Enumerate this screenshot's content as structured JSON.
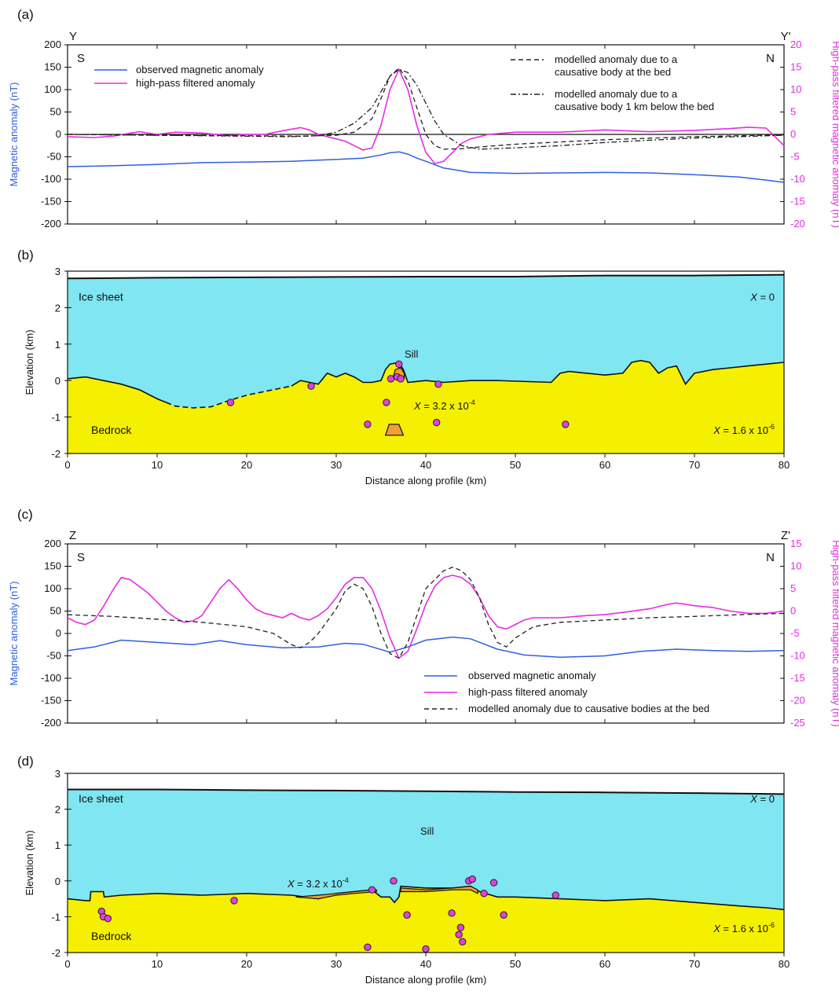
{
  "colors": {
    "observed": "#2f5fe0",
    "filtered": "#e62be6",
    "modelled": "#222222",
    "ice": "#7fe6f2",
    "bedrock": "#f5f000",
    "sill": "#f0a030",
    "marker": "#e040e0",
    "left_axis_label": "#2f5fe0",
    "right_axis_label": "#e62be6"
  },
  "chart_data": [
    {
      "panel": "(a)",
      "type": "line",
      "profile_start": "Y",
      "profile_end": "Y'",
      "south_label": "S",
      "north_label": "N",
      "xlim": [
        0,
        80
      ],
      "ylabel_left": "Magnetic anomaly (nT)",
      "ylabel_right": "High-pass filtered magnetic anomaly (nT)",
      "ylim_left": [
        -200,
        200
      ],
      "ylim_right": [
        -20,
        20
      ],
      "yticks_left": [
        200,
        150,
        100,
        50,
        0,
        -50,
        -100,
        -150,
        -200
      ],
      "yticks_right": [
        20,
        15,
        10,
        5,
        0,
        -5,
        -10,
        -15,
        -20
      ],
      "zero_line": true,
      "series": [
        {
          "key": "observed",
          "name": "observed magnetic anomaly",
          "axis": "left",
          "style": "solid",
          "x": [
            0,
            5,
            10,
            15,
            20,
            25,
            30,
            33,
            35,
            36,
            37,
            38,
            39,
            40,
            42,
            45,
            50,
            55,
            60,
            65,
            70,
            75,
            78,
            80
          ],
          "y": [
            -72,
            -70,
            -67,
            -63,
            -62,
            -60,
            -56,
            -53,
            -46,
            -41,
            -39,
            -44,
            -53,
            -60,
            -75,
            -85,
            -87,
            -86,
            -85,
            -86,
            -90,
            -95,
            -102,
            -107
          ]
        },
        {
          "key": "filtered",
          "name": "high-pass filtered anomaly",
          "axis": "right",
          "style": "solid",
          "x": [
            0,
            3,
            5,
            8,
            10,
            12,
            15,
            18,
            20,
            22,
            24,
            26,
            27,
            28,
            30,
            31,
            32,
            33,
            34,
            35,
            36,
            37,
            38,
            39,
            40,
            41,
            42,
            43,
            44,
            45,
            47,
            50,
            55,
            60,
            65,
            70,
            72,
            74,
            76,
            78,
            79,
            80
          ],
          "y": [
            -0.5,
            -0.7,
            -0.4,
            0.6,
            0,
            0.5,
            0.3,
            -0.3,
            0,
            0,
            0.8,
            1.5,
            1,
            0,
            -1,
            -1.5,
            -2.5,
            -3.5,
            -3,
            2,
            10,
            14.5,
            10,
            2,
            -4,
            -6.5,
            -6,
            -4,
            -2,
            -1,
            0,
            0.5,
            0.5,
            1,
            0.6,
            0.9,
            1.1,
            1.3,
            1.6,
            1.4,
            -0.5,
            -2.5
          ]
        },
        {
          "key": "modelled_bed",
          "name": "modelled anomaly due to a causative body at the bed",
          "axis": "left",
          "style": "dashed",
          "x": [
            0,
            10,
            20,
            26,
            30,
            32,
            34,
            35,
            36,
            37,
            38,
            39,
            40,
            41,
            42,
            44,
            46,
            50,
            60,
            70,
            80
          ],
          "y": [
            0,
            -2,
            -3,
            -4,
            -2,
            5,
            35,
            80,
            130,
            148,
            120,
            60,
            0,
            -25,
            -33,
            -32,
            -28,
            -22,
            -12,
            -5,
            -1
          ]
        },
        {
          "key": "modelled_deep",
          "name": "modelled anomaly due to a causative body 1 km below the bed",
          "axis": "left",
          "style": "dashdot",
          "x": [
            0,
            10,
            20,
            25,
            28,
            30,
            32,
            34,
            35,
            36,
            37,
            38,
            39,
            40,
            41,
            42,
            44,
            46,
            50,
            55,
            60,
            70,
            80
          ],
          "y": [
            0,
            -2,
            -4,
            -5,
            -3,
            5,
            25,
            60,
            95,
            130,
            145,
            138,
            110,
            70,
            30,
            0,
            -25,
            -33,
            -30,
            -25,
            -18,
            -8,
            -2
          ]
        }
      ]
    },
    {
      "panel": "(b)",
      "type": "area",
      "xlabel": "Distance along profile (km)",
      "ylabel": "Elevation (km)",
      "xlim": [
        0,
        80
      ],
      "ylim": [
        -2,
        3
      ],
      "xticks": [
        0,
        10,
        20,
        30,
        40,
        50,
        60,
        70,
        80
      ],
      "yticks": [
        3,
        2,
        1,
        0,
        -1,
        -2
      ],
      "ice_label": "Ice sheet",
      "bedrock_label": "Bedrock",
      "sill_label": "Sill",
      "ice_susceptibility": "X = 0",
      "bedrock_susceptibility": "X = 1.6 x 10⁻⁶",
      "body_susceptibility": "X = 3.2 x 10⁻⁴",
      "surface": {
        "x": [
          0,
          10,
          20,
          30,
          40,
          50,
          60,
          70,
          80
        ],
        "y": [
          2.8,
          2.82,
          2.83,
          2.84,
          2.85,
          2.85,
          2.88,
          2.88,
          2.9
        ]
      },
      "bed_solid_1": {
        "x": [
          0,
          2,
          4,
          6,
          8,
          10,
          11
        ],
        "y": [
          0.05,
          0.1,
          0.0,
          -0.1,
          -0.25,
          -0.5,
          -0.6
        ]
      },
      "bed_dashed": {
        "x": [
          11,
          12,
          14,
          16,
          18,
          20,
          22,
          24,
          25
        ],
        "y": [
          -0.6,
          -0.7,
          -0.75,
          -0.72,
          -0.55,
          -0.4,
          -0.3,
          -0.2,
          -0.15
        ]
      },
      "bed_solid_2": {
        "x": [
          25,
          26,
          28,
          29,
          30,
          31,
          32,
          33,
          34,
          35,
          35.5,
          36,
          37,
          37.5,
          38,
          40,
          42,
          45,
          48,
          54,
          55,
          56,
          58,
          60,
          62,
          63,
          64,
          65,
          66,
          67,
          68,
          69,
          70,
          72,
          74,
          76,
          78,
          80
        ],
        "y": [
          -0.15,
          0,
          -0.1,
          0.2,
          0.1,
          0.2,
          0.1,
          -0.05,
          -0.05,
          0.0,
          0.3,
          0.45,
          0.5,
          0.3,
          -0.05,
          0.0,
          -0.05,
          0.0,
          0.0,
          -0.05,
          0.2,
          0.25,
          0.2,
          0.15,
          0.2,
          0.5,
          0.55,
          0.5,
          0.2,
          0.35,
          0.4,
          -0.1,
          0.2,
          0.3,
          0.35,
          0.4,
          0.45,
          0.5
        ]
      },
      "sill_bodies": [
        {
          "x": [
            36.3,
            36.6,
            37.2,
            37.6,
            37.6,
            36.3
          ],
          "y": [
            0.05,
            0.3,
            0.35,
            0.2,
            0.05,
            0.05
          ]
        }
      ],
      "deep_body": {
        "x": [
          35.5,
          35.9,
          37.0,
          37.5,
          35.5
        ],
        "y": [
          -1.5,
          -1.2,
          -1.2,
          -1.5,
          -1.5
        ]
      },
      "markers": {
        "x": [
          18.2,
          27.2,
          33.5,
          35.6,
          36.1,
          36.8,
          37.2,
          37.0,
          41.2,
          41.4,
          55.6
        ],
        "y": [
          -0.6,
          -0.15,
          -1.2,
          -0.6,
          0.05,
          0.1,
          0.05,
          0.45,
          -1.15,
          -0.1,
          -1.2
        ]
      }
    },
    {
      "panel": "(c)",
      "type": "line",
      "profile_start": "Z",
      "profile_end": "Z'",
      "south_label": "S",
      "north_label": "N",
      "xlim": [
        0,
        80
      ],
      "ylabel_left": "Magnetic anomaly (nT)",
      "ylabel_right": "High-pass filtered magnetic anomaly (nT)",
      "ylim_left": [
        -200,
        200
      ],
      "ylim_right": [
        -25,
        15
      ],
      "yticks_left": [
        200,
        150,
        100,
        50,
        0,
        -50,
        -100,
        -150,
        -200
      ],
      "yticks_right": [
        15,
        10,
        5,
        0,
        -5,
        -10,
        -15,
        -20,
        -25
      ],
      "zero_line": false,
      "series": [
        {
          "key": "observed",
          "name": "observed magnetic anomaly",
          "axis": "left",
          "style": "solid",
          "x": [
            0,
            3,
            6,
            10,
            14,
            17,
            20,
            24,
            28,
            31,
            33,
            36,
            38,
            40,
            43,
            45,
            48,
            51,
            55,
            60,
            64,
            68,
            72,
            76,
            80
          ],
          "y": [
            -38,
            -30,
            -15,
            -20,
            -25,
            -16,
            -25,
            -32,
            -30,
            -22,
            -24,
            -42,
            -30,
            -15,
            -8,
            -12,
            -35,
            -48,
            -53,
            -50,
            -40,
            -35,
            -38,
            -40,
            -38
          ]
        },
        {
          "key": "filtered",
          "name": "high-pass filtered anomaly",
          "axis": "right",
          "style": "solid",
          "x": [
            0,
            1,
            2,
            3,
            4,
            5,
            6,
            7,
            8,
            9,
            10,
            11,
            12,
            13,
            14,
            15,
            16,
            17,
            18,
            19,
            20,
            21,
            22,
            23,
            24,
            25,
            26,
            27,
            28,
            29,
            30,
            31,
            32,
            33,
            34,
            35,
            36,
            37,
            38,
            39,
            40,
            41,
            42,
            43,
            44,
            45,
            46,
            47,
            48,
            49,
            50,
            51,
            52,
            55,
            58,
            60,
            62,
            65,
            67,
            68,
            70,
            72,
            74,
            76,
            78,
            80
          ],
          "y": [
            -1.5,
            -2.5,
            -3,
            -2,
            1,
            4.5,
            7.5,
            7,
            5.5,
            4,
            2,
            0,
            -1.5,
            -2.5,
            -2.2,
            -1,
            2,
            5,
            7,
            5,
            2.5,
            0.5,
            -0.5,
            -1,
            -1.5,
            -0.5,
            -1.5,
            -2,
            -1,
            0.5,
            3,
            6,
            7.5,
            7.5,
            5,
            0,
            -6,
            -10.5,
            -9,
            -4,
            1.5,
            5.5,
            7.5,
            8,
            7.5,
            6,
            3,
            -1,
            -3.5,
            -4,
            -3,
            -2,
            -1.5,
            -1.5,
            -1,
            -0.8,
            -0.3,
            0.5,
            1.5,
            1.8,
            1.2,
            0.8,
            0,
            -0.5,
            -0.5,
            0
          ]
        },
        {
          "key": "modelled_bed",
          "name": "modelled anomaly due to causative bodies at the bed",
          "axis": "left",
          "style": "dashed",
          "x": [
            0,
            5,
            10,
            15,
            20,
            23,
            25,
            26,
            27,
            28,
            30,
            31,
            32,
            33,
            34,
            35,
            36,
            37,
            38,
            39,
            40,
            42,
            43,
            44,
            45,
            46,
            47,
            48,
            49,
            50,
            52,
            55,
            60,
            65,
            70,
            75,
            80
          ],
          "y": [
            42,
            38,
            32,
            25,
            15,
            0,
            -25,
            -32,
            -20,
            0,
            55,
            95,
            110,
            100,
            60,
            0,
            -45,
            -55,
            -20,
            40,
            100,
            140,
            148,
            140,
            120,
            80,
            20,
            -20,
            -30,
            -10,
            15,
            25,
            30,
            35,
            38,
            42,
            45
          ]
        }
      ]
    },
    {
      "panel": "(d)",
      "type": "area",
      "xlabel": "Distance along profile (km)",
      "ylabel": "Elevation (km)",
      "xlim": [
        0,
        80
      ],
      "ylim": [
        -2,
        3
      ],
      "xticks": [
        0,
        10,
        20,
        30,
        40,
        50,
        60,
        70,
        80
      ],
      "yticks": [
        3,
        2,
        1,
        0,
        -1,
        -2
      ],
      "ice_label": "Ice sheet",
      "bedrock_label": "Bedrock",
      "sill_label": "Sill",
      "ice_susceptibility": "X = 0",
      "bedrock_susceptibility": "X = 1.6 x 10⁻⁶",
      "body_susceptibility": "X = 3.2 x 10⁻⁴",
      "surface": {
        "x": [
          0,
          10,
          20,
          30,
          40,
          50,
          60,
          70,
          80
        ],
        "y": [
          2.55,
          2.55,
          2.53,
          2.52,
          2.5,
          2.48,
          2.47,
          2.45,
          2.42
        ]
      },
      "bed_solid_1": {
        "x": [
          0,
          2,
          2.5,
          2.6,
          4,
          4.1,
          6,
          10,
          15,
          20,
          25,
          28,
          30,
          32,
          34,
          35,
          36,
          36.5,
          37,
          37.2,
          40,
          43,
          45,
          46,
          48,
          50,
          55,
          60,
          65,
          70,
          75,
          78,
          80
        ],
        "y": [
          -0.5,
          -0.55,
          -0.55,
          -0.3,
          -0.3,
          -0.45,
          -0.4,
          -0.35,
          -0.4,
          -0.35,
          -0.4,
          -0.5,
          -0.35,
          -0.3,
          -0.25,
          -0.45,
          -0.45,
          -0.6,
          -0.45,
          -0.15,
          -0.2,
          -0.2,
          -0.15,
          -0.3,
          -0.45,
          -0.45,
          -0.5,
          -0.55,
          -0.5,
          -0.6,
          -0.7,
          -0.75,
          -0.8
        ]
      },
      "sill_bodies": [
        {
          "x": [
            25.5,
            28,
            30,
            32,
            34,
            34.5,
            34.5,
            32,
            30,
            28,
            25.5
          ],
          "y": [
            -0.45,
            -0.4,
            -0.35,
            -0.3,
            -0.25,
            -0.25,
            -0.3,
            -0.35,
            -0.4,
            -0.5,
            -0.45
          ]
        },
        {
          "x": [
            37.2,
            40,
            43,
            45,
            45.8,
            45.8,
            45,
            43,
            40,
            37.2
          ],
          "y": [
            -0.2,
            -0.25,
            -0.2,
            -0.15,
            -0.25,
            -0.35,
            -0.25,
            -0.25,
            -0.3,
            -0.3
          ]
        }
      ],
      "markers": {
        "x": [
          3.8,
          4.0,
          4.5,
          18.6,
          33.5,
          34.0,
          36.4,
          37.9,
          42.9,
          43.7,
          43.9,
          44.1,
          44.8,
          45.2,
          46.5,
          47.6,
          48.7,
          54.5,
          40.0
        ],
        "y": [
          -0.85,
          -1.0,
          -1.05,
          -0.55,
          -1.85,
          -0.25,
          0.0,
          -0.95,
          -0.9,
          -1.5,
          -1.3,
          -1.7,
          0.0,
          0.05,
          -0.35,
          -0.05,
          -0.95,
          -0.4,
          -1.9
        ]
      }
    }
  ]
}
